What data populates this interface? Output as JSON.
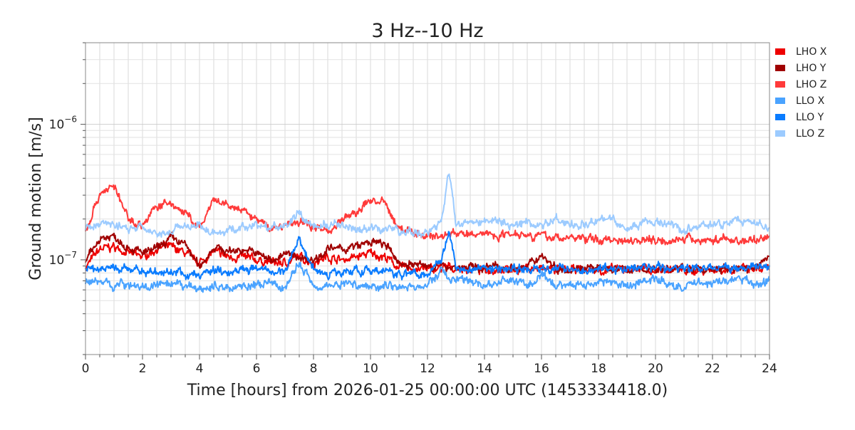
{
  "chart_data": {
    "type": "line",
    "title": "3 Hz--10 Hz",
    "xlabel": "Time [hours] from 2026-01-25 00:00:00 UTC (1453334418.0)",
    "ylabel": "Ground motion [m/s]",
    "xlim": [
      0,
      24
    ],
    "ylim": [
      2e-08,
      4e-06
    ],
    "yscale": "log",
    "grid": true,
    "legend_position": "outside-top-right",
    "x_ticks": [
      "0",
      "2",
      "4",
      "6",
      "8",
      "10",
      "12",
      "14",
      "16",
      "18",
      "20",
      "22",
      "24"
    ],
    "y_ticks": [
      {
        "base": "10",
        "exp": "−6",
        "value": 1e-06
      },
      {
        "base": "10",
        "exp": "−7",
        "value": 1e-07
      }
    ],
    "values_unit_scale": 1e-07,
    "x": [
      0,
      0.5,
      1,
      1.5,
      2,
      2.5,
      3,
      3.5,
      4,
      4.5,
      5,
      5.5,
      6,
      6.5,
      7,
      7.5,
      8,
      8.5,
      9,
      9.5,
      10,
      10.5,
      11,
      11.5,
      12,
      12.5,
      12.75,
      13,
      13.5,
      14,
      14.5,
      15,
      15.5,
      16,
      16.5,
      17,
      17.5,
      18,
      18.5,
      19,
      19.5,
      20,
      20.5,
      21,
      21.5,
      22,
      22.5,
      23,
      23.5,
      24
    ],
    "series": [
      {
        "name": "LHO X",
        "color": "#ee0000",
        "values": [
          0.88,
          1.2,
          1.25,
          1.12,
          1.06,
          1.2,
          1.25,
          1.12,
          0.95,
          1.15,
          1.05,
          1.05,
          1.0,
          0.95,
          0.95,
          1.05,
          0.96,
          1.05,
          1.0,
          1.05,
          1.12,
          1.05,
          0.88,
          0.86,
          0.85,
          0.86,
          0.88,
          0.86,
          0.85,
          0.84,
          0.86,
          0.85,
          0.87,
          0.85,
          0.86,
          0.84,
          0.85,
          0.83,
          0.84,
          0.85,
          0.86,
          0.84,
          0.85,
          0.84,
          0.83,
          0.85,
          0.84,
          0.86,
          0.84,
          0.85
        ]
      },
      {
        "name": "LHO Y",
        "color": "#a00000",
        "values": [
          0.95,
          1.45,
          1.5,
          1.25,
          1.12,
          1.2,
          1.45,
          1.3,
          0.88,
          1.25,
          1.15,
          1.2,
          1.12,
          1.0,
          1.1,
          1.05,
          1.0,
          1.2,
          1.2,
          1.25,
          1.35,
          1.3,
          0.95,
          0.92,
          0.9,
          0.9,
          0.9,
          0.88,
          0.88,
          0.87,
          0.9,
          0.86,
          0.88,
          1.1,
          0.87,
          0.86,
          0.88,
          0.85,
          0.86,
          0.84,
          0.85,
          0.86,
          0.85,
          0.87,
          0.84,
          0.86,
          0.85,
          0.88,
          0.86,
          1.1
        ]
      },
      {
        "name": "LHO Z",
        "color": "#ff3a3a",
        "values": [
          1.6,
          3.1,
          3.5,
          2.0,
          1.8,
          2.5,
          2.6,
          2.2,
          1.7,
          2.7,
          2.5,
          2.3,
          2.0,
          1.7,
          1.8,
          1.9,
          1.8,
          1.6,
          2.0,
          2.2,
          2.8,
          2.6,
          1.7,
          1.6,
          1.5,
          1.5,
          1.55,
          1.6,
          1.5,
          1.6,
          1.5,
          1.6,
          1.55,
          1.5,
          1.45,
          1.45,
          1.45,
          1.4,
          1.42,
          1.4,
          1.42,
          1.4,
          1.4,
          1.42,
          1.4,
          1.4,
          1.42,
          1.38,
          1.4,
          1.5
        ]
      },
      {
        "name": "LLO X",
        "color": "#4aa3ff",
        "values": [
          0.68,
          0.7,
          0.65,
          0.67,
          0.62,
          0.65,
          0.64,
          0.65,
          0.6,
          0.64,
          0.62,
          0.65,
          0.64,
          0.67,
          0.62,
          0.94,
          0.66,
          0.64,
          0.67,
          0.66,
          0.63,
          0.66,
          0.64,
          0.62,
          0.65,
          0.83,
          0.75,
          0.7,
          0.7,
          0.65,
          0.67,
          0.72,
          0.64,
          0.75,
          0.64,
          0.67,
          0.65,
          0.7,
          0.67,
          0.64,
          0.7,
          0.72,
          0.66,
          0.62,
          0.7,
          0.67,
          0.7,
          0.72,
          0.66,
          0.7
        ]
      },
      {
        "name": "LLO Y",
        "color": "#0a7cff",
        "values": [
          0.85,
          0.86,
          0.88,
          0.83,
          0.85,
          0.78,
          0.83,
          0.78,
          0.76,
          0.85,
          0.81,
          0.88,
          0.85,
          0.81,
          0.83,
          1.45,
          0.85,
          0.78,
          0.83,
          0.85,
          0.8,
          0.83,
          0.78,
          0.81,
          0.78,
          1.05,
          1.7,
          0.85,
          0.86,
          0.88,
          0.85,
          0.87,
          0.84,
          0.86,
          0.85,
          0.88,
          0.84,
          0.86,
          0.85,
          0.87,
          0.86,
          0.88,
          0.85,
          0.87,
          0.86,
          0.88,
          0.87,
          0.86,
          0.88,
          0.9
        ]
      },
      {
        "name": "LLO Z",
        "color": "#9ccbff",
        "values": [
          1.7,
          1.85,
          1.8,
          1.75,
          1.72,
          1.6,
          1.65,
          1.8,
          1.75,
          1.6,
          1.65,
          1.7,
          1.8,
          1.75,
          1.72,
          2.2,
          1.75,
          1.8,
          1.8,
          1.6,
          1.7,
          1.7,
          1.65,
          1.6,
          1.55,
          1.9,
          4.5,
          1.8,
          2.0,
          1.9,
          1.9,
          1.75,
          1.9,
          1.8,
          2.0,
          1.8,
          1.9,
          2.0,
          2.0,
          1.7,
          1.9,
          1.85,
          1.8,
          1.65,
          1.75,
          1.85,
          1.8,
          2.0,
          1.8,
          1.75
        ]
      }
    ]
  }
}
